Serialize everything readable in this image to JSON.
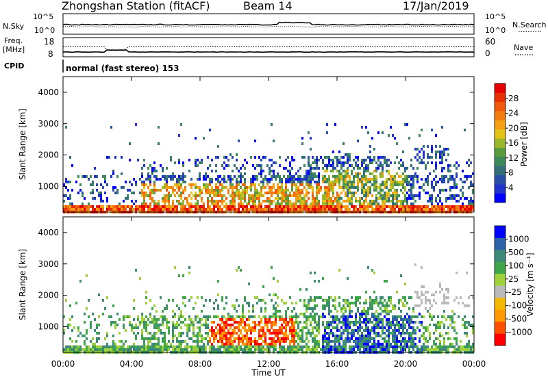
{
  "header": {
    "station": "Zhongshan Station (fitACF)",
    "beam": "Beam 14",
    "date": "17/Jan/2019"
  },
  "panels": {
    "nsky": {
      "label": "N.Sky",
      "ticks": [
        "10^5",
        "10^0"
      ]
    },
    "nsearch": {
      "label": "N.Search",
      "ticks": [
        "10^5",
        "10^0"
      ]
    },
    "freq": {
      "label_line1": "Freq.",
      "label_line2": "[MHz]",
      "ticks": [
        "18",
        "8"
      ]
    },
    "nave": {
      "label": "Nave",
      "ticks": [
        "60",
        "0"
      ]
    },
    "cpid": {
      "label": "CPID",
      "text": "normal (fast stereo) 153"
    }
  },
  "colors": {
    "power": [
      "#0000ff",
      "#2233cc",
      "#2a4fa6",
      "#33707a",
      "#3d8a5a",
      "#5a9c3c",
      "#9ab82a",
      "#e3c316",
      "#f4a012",
      "#f27d0e",
      "#ee5a0a",
      "#e83006",
      "#e60000"
    ],
    "velocity": [
      "#ff0000",
      "#ff5000",
      "#ff9a00",
      "#f5b800",
      "#bbbbbb",
      "#9fd23a",
      "#3fa74a",
      "#3e8a78",
      "#2c62a8",
      "#0000ff"
    ]
  },
  "chart_data": [
    {
      "type": "heatmap",
      "name": "power",
      "ylabel": "Slant Range [km]",
      "xlabel": "Time UT",
      "x_ticks": [
        "00:00",
        "04:00",
        "08:00",
        "12:00",
        "16:00",
        "20:00",
        "00:00"
      ],
      "y_ticks": [
        "4000",
        "3000",
        "2000",
        "1000"
      ],
      "ylim": [
        180,
        4500
      ],
      "xlim_hours": [
        0,
        24
      ],
      "colorbar": {
        "label": "Power [dB]",
        "ticks": [
          "28",
          "24",
          "20",
          "16",
          "12",
          "8",
          "4"
        ],
        "range": [
          0,
          32
        ]
      }
    },
    {
      "type": "heatmap",
      "name": "velocity",
      "ylabel": "Slant Range [km]",
      "xlabel": "Time UT",
      "x_ticks": [
        "00:00",
        "04:00",
        "08:00",
        "12:00",
        "16:00",
        "20:00",
        "00:00"
      ],
      "y_ticks": [
        "4000",
        "3000",
        "2000",
        "1000"
      ],
      "ylim": [
        180,
        4500
      ],
      "xlim_hours": [
        0,
        24
      ],
      "colorbar": {
        "label": "Velocity [m s⁻¹]",
        "ticks": [
          "1000",
          "500",
          "100",
          "25",
          "-25",
          "-100",
          "-500",
          "-1000"
        ]
      }
    }
  ]
}
